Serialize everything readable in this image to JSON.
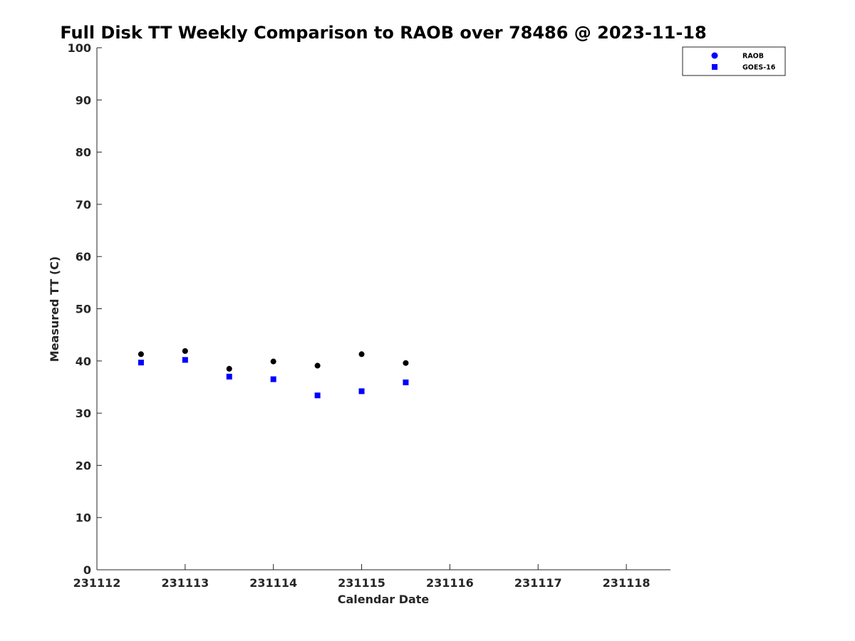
{
  "chart_data": {
    "type": "scatter",
    "title": "Full Disk TT Weekly Comparison to RAOB over 78486 @ 2023-11-18",
    "xlabel": "Calendar Date",
    "ylabel": "Measured TT (C)",
    "xlim": [
      231112,
      231118.5
    ],
    "ylim": [
      0,
      100
    ],
    "x_ticks": [
      231112,
      231113,
      231114,
      231115,
      231116,
      231117,
      231118
    ],
    "x_tick_labels": [
      "231112",
      "231113",
      "231114",
      "231115",
      "231116",
      "231117",
      "231118"
    ],
    "y_ticks": [
      0,
      10,
      20,
      30,
      40,
      50,
      60,
      70,
      80,
      90,
      100
    ],
    "y_tick_labels": [
      "0",
      "10",
      "20",
      "30",
      "40",
      "50",
      "60",
      "70",
      "80",
      "90",
      "100"
    ],
    "grid": false,
    "legend_position": "top-right",
    "series": [
      {
        "name": "RAOB",
        "marker": "circle",
        "legend_color": "#0000ff",
        "color": "#000000",
        "x": [
          231112.5,
          231113.0,
          231113.5,
          231114.0,
          231114.5,
          231115.0,
          231115.5
        ],
        "y": [
          41.3,
          41.9,
          38.5,
          39.9,
          39.1,
          41.3,
          39.6
        ]
      },
      {
        "name": "GOES-16",
        "marker": "square",
        "legend_color": "#0000ff",
        "color": "#0000ff",
        "x": [
          231112.5,
          231113.0,
          231113.5,
          231114.0,
          231114.5,
          231115.0,
          231115.5
        ],
        "y": [
          39.7,
          40.2,
          37.0,
          36.5,
          33.4,
          34.2,
          35.9
        ]
      }
    ]
  }
}
